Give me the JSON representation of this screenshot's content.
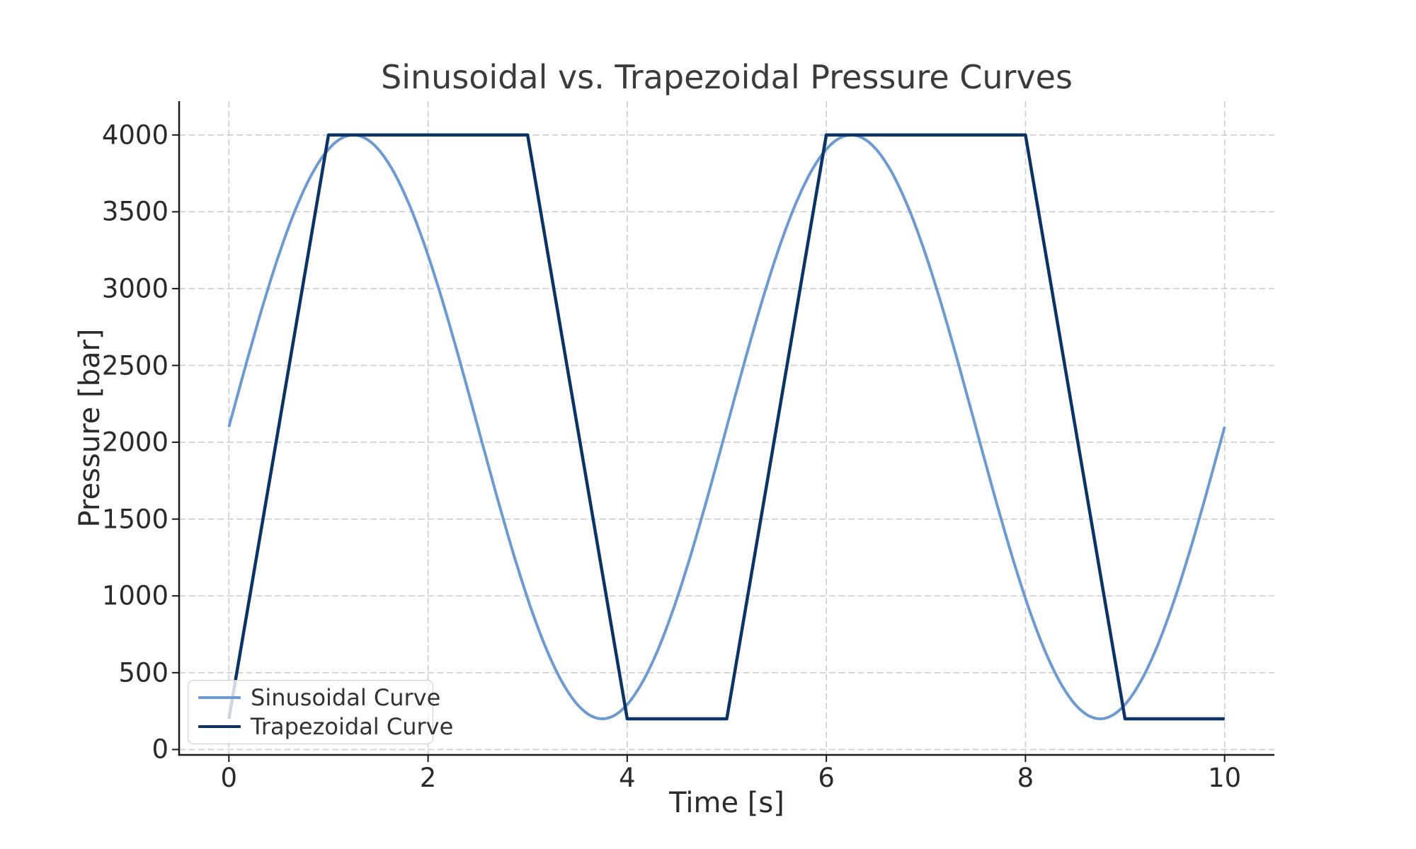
{
  "chart_data": {
    "type": "line",
    "title": "Sinusoidal vs. Trapezoidal Pressure Curves",
    "xlabel": "Time [s]",
    "ylabel": "Pressure [bar]",
    "xlim": [
      -0.5,
      10.5
    ],
    "ylim": [
      -35,
      4220
    ],
    "xticks": [
      0,
      2,
      4,
      6,
      8,
      10
    ],
    "yticks": [
      0,
      500,
      1000,
      1500,
      2000,
      2500,
      3000,
      3500,
      4000
    ],
    "grid": true,
    "grid_style": "dashed",
    "legend_position": "lower left",
    "colors": {
      "background": "#ffffff",
      "grid": "#cdcdcd",
      "axis": "#1a1a1a",
      "title_text": "#3b3b3b",
      "tick_text": "#2a2a2a",
      "legend_border": "#cccccc"
    },
    "series": [
      {
        "name": "Sinusoidal Curve",
        "color": "#6D9BD1",
        "line_width": 4,
        "shape": "sinusoid",
        "mean": 2100,
        "amplitude": 1900,
        "period_s": 5,
        "phase_s": 0,
        "t_range": [
          0,
          10
        ],
        "key_points_t_p": [
          [
            0,
            2100
          ],
          [
            1.25,
            4000
          ],
          [
            2.5,
            2100
          ],
          [
            3.75,
            200
          ],
          [
            5,
            2100
          ],
          [
            6.25,
            4000
          ],
          [
            7.5,
            2100
          ],
          [
            8.75,
            200
          ],
          [
            10,
            2100
          ]
        ]
      },
      {
        "name": "Trapezoidal Curve",
        "color": "#0B3366",
        "line_width": 4.5,
        "shape": "polyline",
        "key_points_t_p": [
          [
            0,
            200
          ],
          [
            1,
            4000
          ],
          [
            3,
            4000
          ],
          [
            4,
            200
          ],
          [
            5,
            200
          ],
          [
            6,
            4000
          ],
          [
            8,
            4000
          ],
          [
            9,
            200
          ],
          [
            10,
            200
          ]
        ]
      }
    ]
  }
}
